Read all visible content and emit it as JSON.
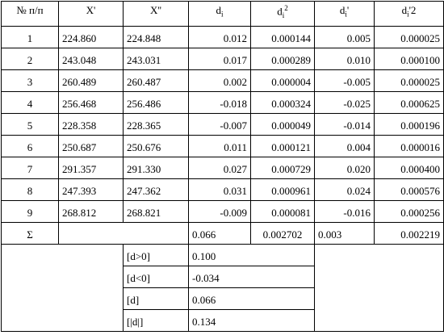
{
  "table": {
    "header": [
      {
        "text": "№ п/п"
      },
      {
        "text": "X'"
      },
      {
        "text": "X''"
      },
      {
        "text": "d",
        "sub": "i"
      },
      {
        "text": "d",
        "sub": "i",
        "sup": "2"
      },
      {
        "text": "d",
        "sub": "i",
        "tail": "'"
      },
      {
        "text": "d",
        "sub": "i",
        "tail": "'2"
      }
    ],
    "rows": [
      [
        "1",
        "224.860",
        "224.848",
        "0.012",
        "0.000144",
        "0.005",
        "0.000025"
      ],
      [
        "2",
        "243.048",
        "243.031",
        "0.017",
        "0.000289",
        "0.010",
        "0.000100"
      ],
      [
        "3",
        "260.489",
        "260.487",
        "0.002",
        "0.000004",
        "-0.005",
        "0.000025"
      ],
      [
        "4",
        "256.468",
        "256.486",
        "-0.018",
        "0.000324",
        "-0.025",
        "0.000625"
      ],
      [
        "5",
        "228.358",
        "228.365",
        "-0.007",
        "0.000049",
        "-0.014",
        "0.000196"
      ],
      [
        "6",
        "250.687",
        "250.676",
        "0.011",
        "0.000121",
        "0.004",
        "0.000016"
      ],
      [
        "7",
        "291.357",
        "291.330",
        "0.027",
        "0.000729",
        "0.020",
        "0.000400"
      ],
      [
        "8",
        "247.393",
        "247.362",
        "0.031",
        "0.000961",
        "0.024",
        "0.000576"
      ],
      [
        "9",
        "268.812",
        "268.821",
        "-0.009",
        "0.000081",
        "-0.016",
        "0.000256"
      ]
    ],
    "sum_row": {
      "label": "Σ",
      "values": [
        "0.066",
        "0.002702",
        "0.003",
        "0.002219"
      ]
    },
    "summary": [
      {
        "label": "[d>0]",
        "value": "0.100"
      },
      {
        "label": "[d<0]",
        "value": "-0.034"
      },
      {
        "label": "[d]",
        "value": "0.066"
      },
      {
        "label": "[|d|]",
        "value": "0.134"
      }
    ]
  }
}
